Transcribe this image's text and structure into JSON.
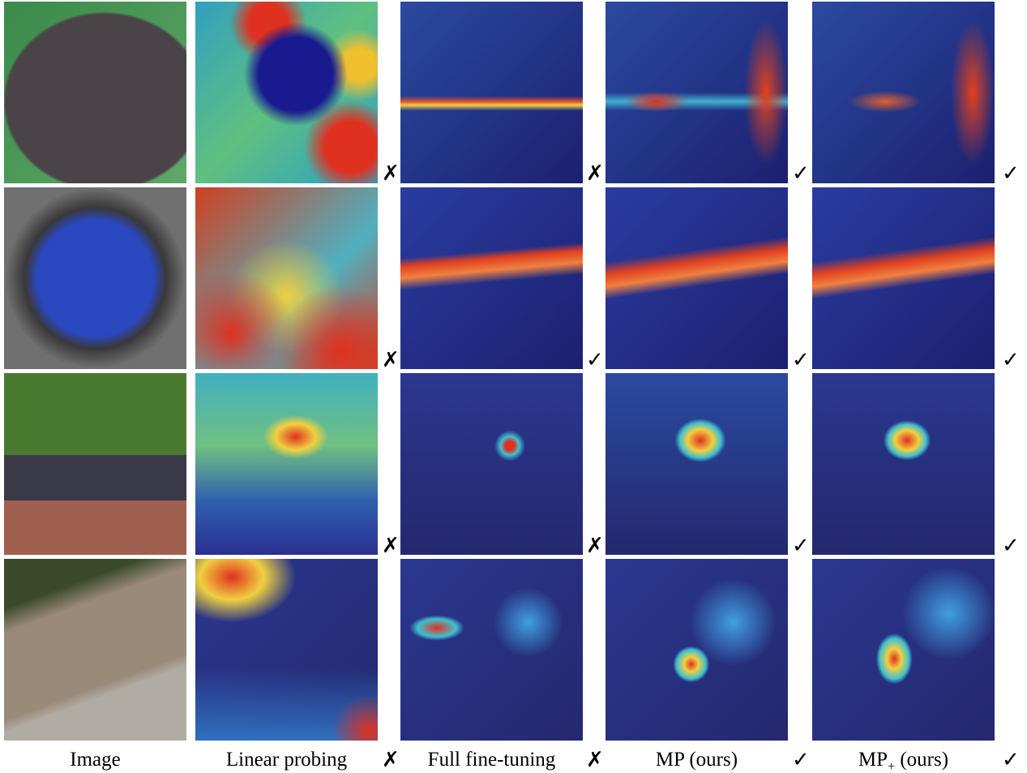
{
  "columns": [
    "Image",
    "Linear probing",
    "Full fine-tuning",
    "MP (ours)",
    {
      "text": "MP",
      "sub": "+",
      "rest": "(ours)"
    }
  ],
  "column_marks": [
    "✗",
    "✗",
    "✓",
    "✓"
  ],
  "rows": [
    [
      "✗",
      "✗",
      "✓",
      "✓"
    ],
    [
      "✗",
      "✓",
      "✓",
      "✓"
    ],
    [
      "✗",
      "✗",
      "✓",
      "✓"
    ]
  ]
}
